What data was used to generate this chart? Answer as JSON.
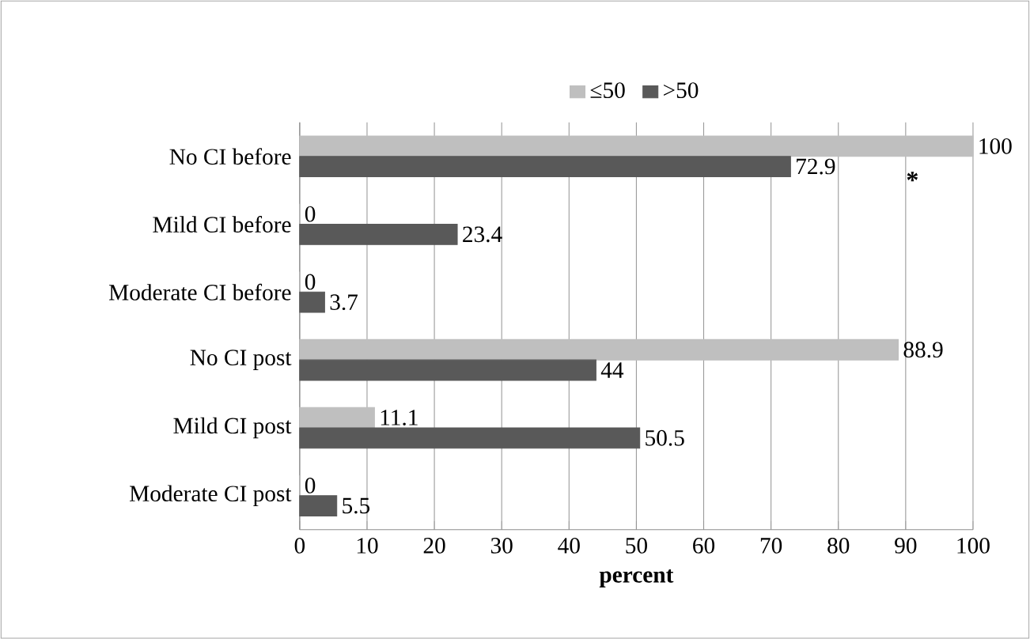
{
  "chart_data": {
    "type": "bar",
    "orientation": "horizontal",
    "xlabel": "**percent**",
    "categories": [
      "No CI before",
      "Mild CI before",
      "Moderate CI before",
      "No CI post",
      "Mild CI post",
      "Moderate CI post"
    ],
    "series": [
      {
        "name": "≤50",
        "color": "#bfbfbf",
        "values": [
          100,
          0,
          0,
          88.9,
          11.1,
          0
        ]
      },
      {
        "name": ">50",
        "color": "#595959",
        "values": [
          72.9,
          23.4,
          3.7,
          44,
          50.5,
          5.5
        ]
      }
    ],
    "xlim": [
      0,
      100
    ],
    "xticks": [
      0,
      10,
      20,
      30,
      40,
      50,
      60,
      70,
      80,
      90,
      100
    ],
    "grid": "x",
    "legend": "top",
    "data_labels": true,
    "annotations": [
      {
        "text": "*",
        "x": 91,
        "y": "No CI before"
      }
    ]
  }
}
